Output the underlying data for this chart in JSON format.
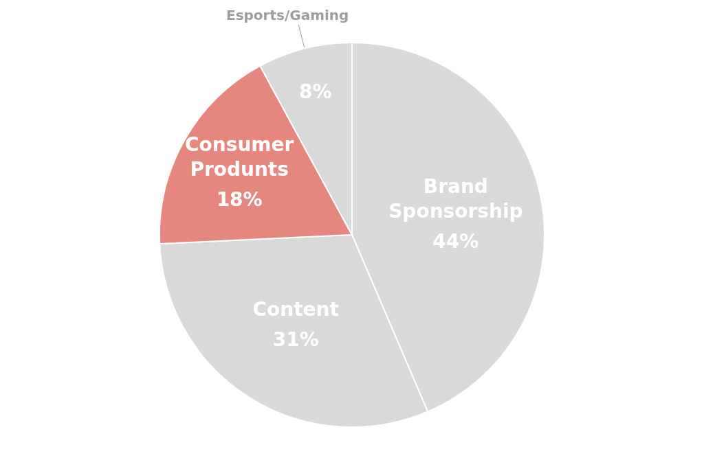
{
  "chart_data": {
    "type": "pie",
    "categories": [
      "Brand Sponsorship",
      "Content",
      "Consumer Produnts",
      "Esports/Gaming"
    ],
    "values": [
      44,
      31,
      18,
      8
    ],
    "colors": [
      "#d9d9d9",
      "#d9d9d9",
      "#e6877f",
      "#d9d9d9"
    ],
    "value_labels": [
      "44%",
      "31%",
      "18%",
      "8%"
    ]
  }
}
